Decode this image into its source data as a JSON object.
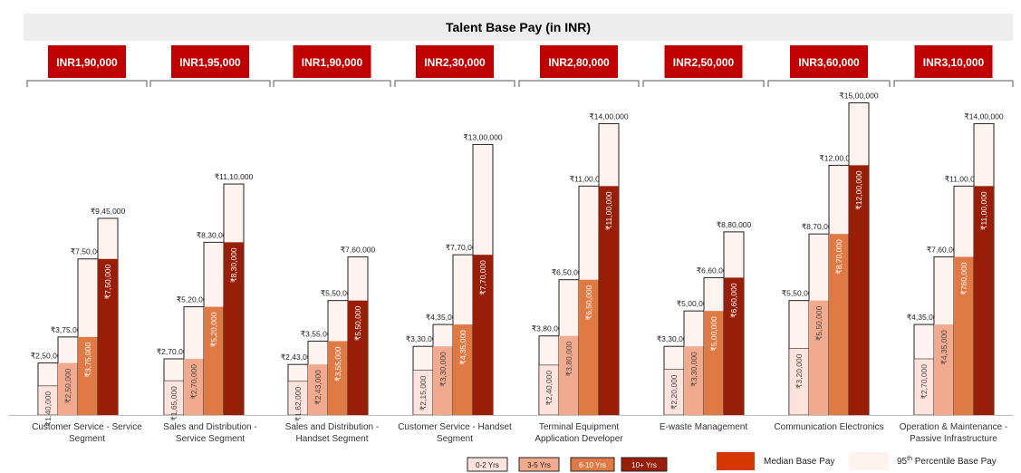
{
  "title": "Talent Base Pay (in INR)",
  "colors": {
    "yrs_0_2": "#fde3dc",
    "yrs_3_5": "#f2aa8f",
    "yrs_6_10": "#e07a45",
    "yrs_10p": "#981e08",
    "p95_fill": "#fff3f0",
    "badge": "#c00000",
    "median_legend": "#d43800"
  },
  "legend": {
    "experience": [
      {
        "label": "0-2 Yrs",
        "color_key": "yrs_0_2"
      },
      {
        "label": "3-5 Yrs",
        "color_key": "yrs_3_5"
      },
      {
        "label": "6-10 Yrs",
        "color_key": "yrs_6_10"
      },
      {
        "label": "10+ Yrs",
        "color_key": "yrs_10p"
      }
    ],
    "median_label": "Median Base Pay",
    "p95_label_prefix": "95",
    "p95_label_sup": "th",
    "p95_label_suffix": " Percentile Base Pay"
  },
  "chart_data": {
    "type": "bar",
    "title": "Talent Base Pay (in INR)",
    "series_names": [
      "0-2 Yrs",
      "3-5 Yrs",
      "6-10 Yrs",
      "10+ Yrs"
    ],
    "ylim": [
      0,
      1550000
    ],
    "grid": false,
    "legend_position": "bottom",
    "groups": [
      {
        "name_lines": [
          "Customer Service - Service",
          "Segment"
        ],
        "badge": "INR1,90,000",
        "median": [
          140000,
          250000,
          375000,
          750000
        ],
        "p95": [
          250000,
          375000,
          750000,
          945000
        ],
        "median_labels": [
          "₹1,40,000",
          "₹2,50,000",
          "₹3,75,000",
          "₹7,50,000"
        ],
        "p95_labels": [
          "₹2,50,000",
          "₹3,75,000",
          "₹7,50,000",
          "₹9,45,000"
        ]
      },
      {
        "name_lines": [
          "Sales and Distribution -",
          "Service Segment"
        ],
        "badge": "INR1,95,000",
        "median": [
          165000,
          270000,
          520000,
          830000
        ],
        "p95": [
          270000,
          520000,
          830000,
          1110000
        ],
        "median_labels": [
          "₹1,65,000",
          "₹2,70,000",
          "₹5,20,000",
          "₹8,30,000"
        ],
        "p95_labels": [
          "₹2,70,000",
          "₹5,20,000",
          "₹8,30,000",
          "₹11,10,000"
        ]
      },
      {
        "name_lines": [
          "Sales and Distribution -",
          "Handset Segment"
        ],
        "badge": "INR1,90,000",
        "median": [
          162000,
          243000,
          355000,
          550000
        ],
        "p95": [
          243000,
          355000,
          550000,
          760000
        ],
        "median_labels": [
          "₹1,62,000",
          "₹2,43,000",
          "₹3,55,000",
          "₹5,50,000"
        ],
        "p95_labels": [
          "₹2,43,000",
          "₹3,55,000",
          "₹5,50,000",
          "₹7,60,000"
        ]
      },
      {
        "name_lines": [
          "Customer Service - Handset",
          "Segment"
        ],
        "badge": "INR2,30,000",
        "median": [
          215000,
          330000,
          435000,
          770000
        ],
        "p95": [
          330000,
          435000,
          770000,
          1300000
        ],
        "median_labels": [
          "₹2,15,000",
          "₹3,30,000",
          "₹4,35,000",
          "₹7,70,000"
        ],
        "p95_labels": [
          "₹3,30,000",
          "₹4,35,000",
          "₹7,70,000",
          "₹13,00,000"
        ]
      },
      {
        "name_lines": [
          "Terminal Equipment",
          "Application Developer"
        ],
        "badge": "INR2,80,000",
        "median": [
          240000,
          380000,
          650000,
          1100000
        ],
        "p95": [
          380000,
          650000,
          1100000,
          1400000
        ],
        "median_labels": [
          "₹2,40,000",
          "₹3,80,000",
          "₹6,50,000",
          "₹11,00,000"
        ],
        "p95_labels": [
          "₹3,80,000",
          "₹6,50,000",
          "₹11,00,000",
          "₹14,00,000"
        ]
      },
      {
        "name_lines": [
          "E-waste Management"
        ],
        "badge": "INR2,50,000",
        "median": [
          220000,
          330000,
          500000,
          660000
        ],
        "p95": [
          330000,
          500000,
          660000,
          880000
        ],
        "median_labels": [
          "₹2,20,000",
          "₹3,30,000",
          "₹5,00,000",
          "₹6,60,000"
        ],
        "p95_labels": [
          "₹3,30,000",
          "₹5,00,000",
          "₹6,60,000",
          "₹8,80,000"
        ]
      },
      {
        "name_lines": [
          "Communication Electronics"
        ],
        "badge": "INR3,60,000",
        "median": [
          320000,
          550000,
          870000,
          1200000
        ],
        "p95": [
          550000,
          870000,
          1200000,
          1500000
        ],
        "median_labels": [
          "₹3,20,000",
          "₹5,50,000",
          "₹8,70,000",
          "₹12,00,000"
        ],
        "p95_labels": [
          "₹5,50,000",
          "₹8,70,000",
          "₹12,00,000",
          "₹15,00,000"
        ]
      },
      {
        "name_lines": [
          "Operation & Maintenance -",
          "Passive Infrastructure"
        ],
        "badge": "INR3,10,000",
        "median": [
          270000,
          435000,
          760000,
          1100000
        ],
        "p95": [
          435000,
          760000,
          1100000,
          1400000
        ],
        "median_labels": [
          "₹2,70,000",
          "₹4,35,000",
          "₹760,000",
          "₹11,00,000"
        ],
        "p95_labels": [
          "₹4,35,000",
          "₹7,60,000",
          "₹11,00,000",
          "₹14,00,000"
        ]
      }
    ]
  }
}
